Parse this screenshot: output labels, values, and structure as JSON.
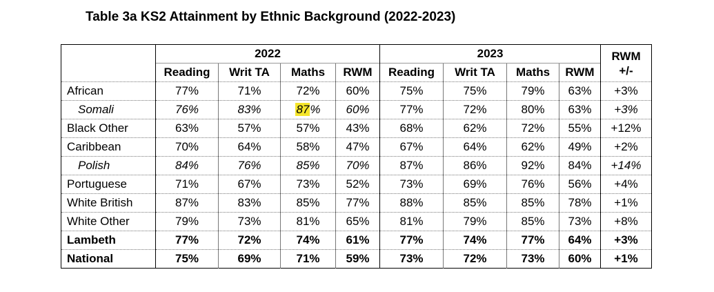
{
  "title": "Table 3a KS2 Attainment by Ethnic Background (2022-2023)",
  "header": {
    "year1": "2022",
    "year2": "2023",
    "rwm_top": "RWM",
    "rwm_bottom": "+/-",
    "cols1": [
      "Reading",
      "Writ TA",
      "Maths",
      "RWM"
    ],
    "cols2": [
      "Reading",
      "Writ TA",
      "Maths",
      "RWM"
    ]
  },
  "rows": [
    {
      "name": "African",
      "style": "normal",
      "v": [
        "77%",
        "71%",
        "72%",
        "60%",
        "75%",
        "75%",
        "79%",
        "63%",
        "+3%"
      ]
    },
    {
      "name": "Somali",
      "style": "italic",
      "v": [
        "76%",
        "83%",
        "87",
        "60%",
        "77%",
        "72%",
        "80%",
        "63%",
        "+3%"
      ],
      "highlight": "87",
      "highlight_suffix": "%"
    },
    {
      "name": "Black Other",
      "style": "normal",
      "v": [
        "63%",
        "57%",
        "57%",
        "43%",
        "68%",
        "62%",
        "72%",
        "55%",
        "+12%"
      ]
    },
    {
      "name": "Caribbean",
      "style": "normal",
      "v": [
        "70%",
        "64%",
        "58%",
        "47%",
        "67%",
        "64%",
        "62%",
        "49%",
        "+2%"
      ]
    },
    {
      "name": "Polish",
      "style": "italic",
      "v": [
        "84%",
        "76%",
        "85%",
        "70%",
        "87%",
        "86%",
        "92%",
        "84%",
        "+14%"
      ]
    },
    {
      "name": "Portuguese",
      "style": "normal",
      "v": [
        "71%",
        "67%",
        "73%",
        "52%",
        "73%",
        "69%",
        "76%",
        "56%",
        "+4%"
      ]
    },
    {
      "name": "White British",
      "style": "normal",
      "v": [
        "87%",
        "83%",
        "85%",
        "77%",
        "88%",
        "85%",
        "85%",
        "78%",
        "+1%"
      ]
    },
    {
      "name": "White Other",
      "style": "normal",
      "v": [
        "79%",
        "73%",
        "81%",
        "65%",
        "81%",
        "79%",
        "85%",
        "73%",
        "+8%"
      ]
    },
    {
      "name": "Lambeth",
      "style": "bold",
      "v": [
        "77%",
        "72%",
        "74%",
        "61%",
        "77%",
        "74%",
        "77%",
        "64%",
        "+3%"
      ]
    },
    {
      "name": "National",
      "style": "bold",
      "v": [
        "75%",
        "69%",
        "71%",
        "59%",
        "73%",
        "72%",
        "73%",
        "60%",
        "+1%"
      ]
    }
  ],
  "colors": {
    "highlight": "#f5e52a",
    "border": "#000000",
    "dotted": "#777777"
  }
}
